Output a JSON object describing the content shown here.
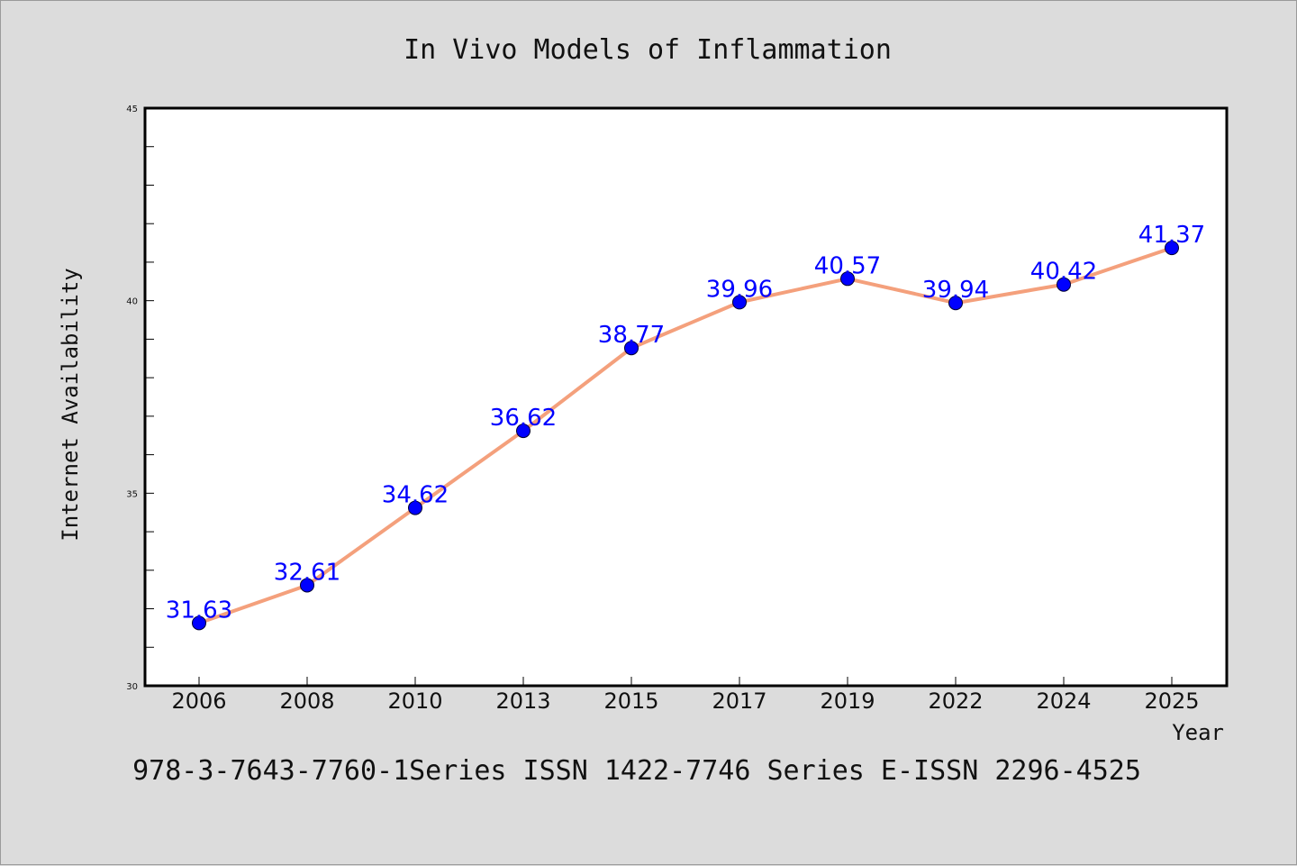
{
  "colors": {
    "background": "#dcdcdc",
    "plot_background": "#ffffff",
    "line": "#f4a07c",
    "marker": "#0000ff",
    "data_label": "#0000ff"
  },
  "footer_text": "978-3-7643-7760-1Series ISSN 1422-7746 Series E-ISSN 2296-4525",
  "chart_data": {
    "type": "line",
    "title": "In Vivo Models of Inflammation",
    "xlabel": "Year",
    "ylabel": "Internet Availability",
    "categories": [
      "2006",
      "2008",
      "2010",
      "2013",
      "2015",
      "2017",
      "2019",
      "2022",
      "2024",
      "2025"
    ],
    "series": [
      {
        "values": [
          31.63,
          32.61,
          34.62,
          36.62,
          38.77,
          39.96,
          40.57,
          39.94,
          40.42,
          41.37
        ],
        "data_labels": [
          "31.63",
          "32.61",
          "34.62",
          "36.62",
          "38.77",
          "39.96",
          "40.57",
          "39.94",
          "40.42",
          "41.37"
        ]
      }
    ],
    "ylim": [
      30,
      45
    ],
    "yticks": [
      "30",
      "35",
      "40",
      "45"
    ],
    "grid": false,
    "legend": "none"
  }
}
